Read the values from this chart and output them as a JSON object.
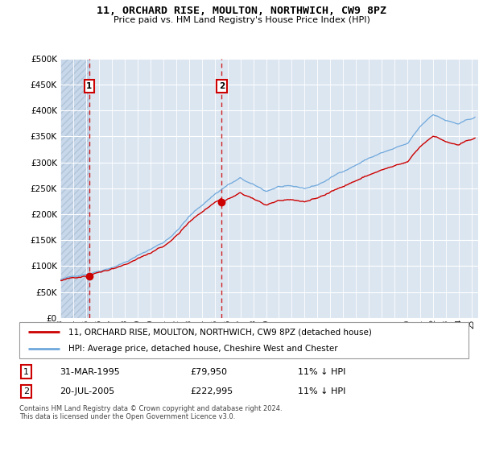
{
  "title": "11, ORCHARD RISE, MOULTON, NORTHWICH, CW9 8PZ",
  "subtitle": "Price paid vs. HM Land Registry's House Price Index (HPI)",
  "legend_line1": "11, ORCHARD RISE, MOULTON, NORTHWICH, CW9 8PZ (detached house)",
  "legend_line2": "HPI: Average price, detached house, Cheshire West and Chester",
  "transaction1_date": "31-MAR-1995",
  "transaction1_price": "£79,950",
  "transaction1_hpi": "11% ↓ HPI",
  "transaction2_date": "20-JUL-2005",
  "transaction2_price": "£222,995",
  "transaction2_hpi": "11% ↓ HPI",
  "footnote": "Contains HM Land Registry data © Crown copyright and database right 2024.\nThis data is licensed under the Open Government Licence v3.0.",
  "hpi_color": "#6fa8dc",
  "price_color": "#cc0000",
  "marker_color": "#cc0000",
  "background_chart": "#dce6f1",
  "hatch_left_color": "#c5d5e8",
  "grid_color": "#ffffff",
  "ylim": [
    0,
    500000
  ],
  "yticks": [
    0,
    50000,
    100000,
    150000,
    200000,
    250000,
    300000,
    350000,
    400000,
    450000,
    500000
  ],
  "transaction1_x": 1995.25,
  "transaction1_y": 79950,
  "transaction2_x": 2005.55,
  "transaction2_y": 222995,
  "xmin": 1993.0,
  "xmax": 2025.5
}
